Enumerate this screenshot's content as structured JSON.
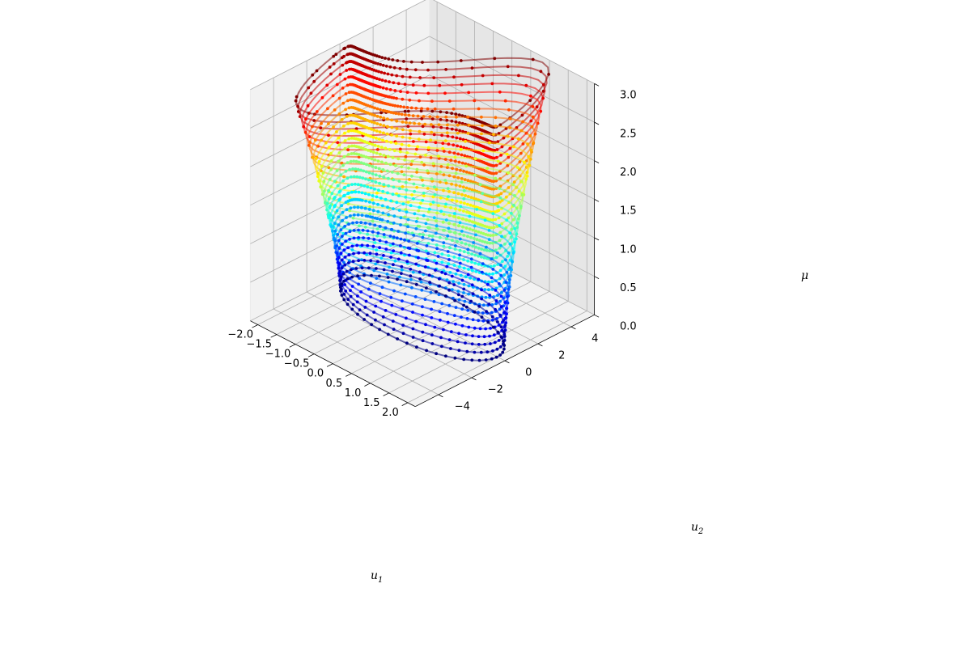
{
  "chart_data": {
    "type": "line3d",
    "description_note": "",
    "axes": {
      "x": {
        "label": "u",
        "label_sub": "1",
        "lim": [
          -2.2,
          2.2
        ],
        "ticks": [
          -2.0,
          -1.5,
          -1.0,
          -0.5,
          0.0,
          0.5,
          1.0,
          1.5,
          2.0
        ],
        "tick_labels": [
          "−2.0",
          "−1.5",
          "−1.0",
          "−0.5",
          "0.0",
          "0.5",
          "1.0",
          "1.5",
          "2.0"
        ]
      },
      "y": {
        "label": "u",
        "label_sub": "2",
        "lim": [
          -5.4,
          5.4
        ],
        "ticks": [
          -4,
          -2,
          0,
          2,
          4
        ],
        "tick_labels": [
          "−4",
          "−2",
          "0",
          "2",
          "4"
        ]
      },
      "z": {
        "label": "μ",
        "lim": [
          0.0,
          3.0
        ],
        "ticks": [
          0.0,
          0.5,
          1.0,
          1.5,
          2.0,
          2.5,
          3.0
        ],
        "tick_labels": [
          "0.0",
          "0.5",
          "1.0",
          "1.5",
          "2.0",
          "2.5",
          "3.0"
        ]
      }
    },
    "grid": true,
    "colormap": "jet",
    "mu_levels": [
      0.0,
      0.1,
      0.2,
      0.3,
      0.4,
      0.5,
      0.6,
      0.7,
      0.8,
      0.9,
      1.0,
      1.1,
      1.2,
      1.3,
      1.4,
      1.5,
      1.6,
      1.7,
      1.8,
      1.9,
      2.0,
      2.1,
      2.2,
      2.3,
      2.4,
      2.5,
      2.6,
      2.7,
      2.8,
      2.9,
      3.0
    ],
    "orbit_amplitude_u1": 2.0,
    "orbit_amplitude_u2_at_mu0": 2.0,
    "orbit_amplitude_u2_at_mu3": 4.4
  }
}
